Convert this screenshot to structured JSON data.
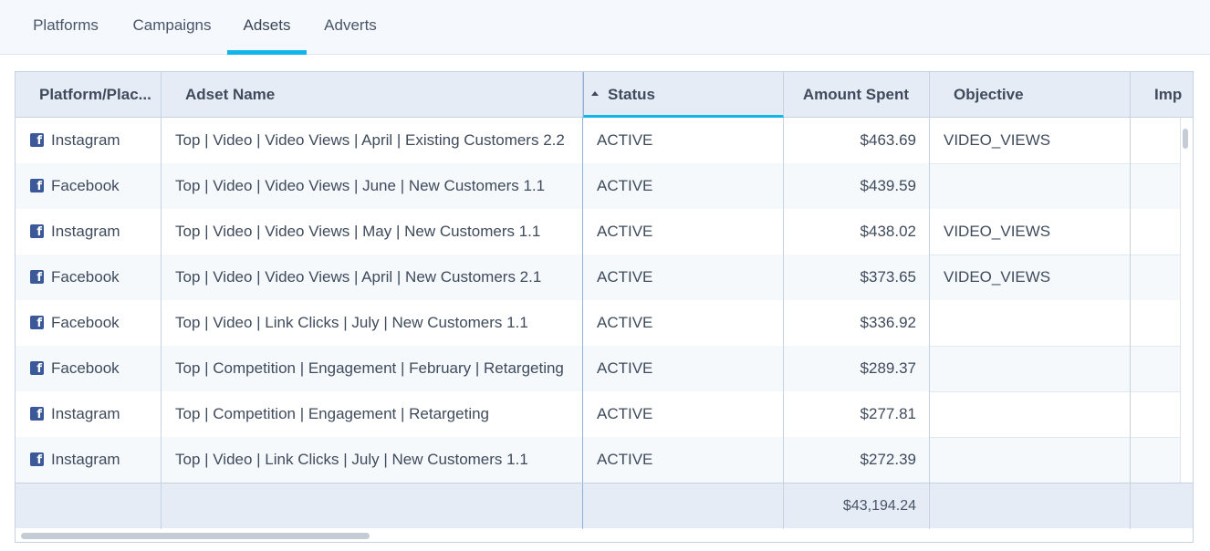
{
  "tabs": [
    {
      "label": "Platforms"
    },
    {
      "label": "Campaigns"
    },
    {
      "label": "Adsets"
    },
    {
      "label": "Adverts"
    }
  ],
  "active_tab": "Adsets",
  "table": {
    "headers": {
      "platform": "Platform/Plac...",
      "adset": "Adset Name",
      "status": "Status",
      "amount": "Amount Spent",
      "objective": "Objective",
      "impressions": "Imp"
    },
    "rows": [
      {
        "platform": "Instagram",
        "adset": "Top | Video | Video Views | April | Existing Customers 2.2",
        "status": "ACTIVE",
        "amount": "$463.69",
        "objective": "VIDEO_VIEWS"
      },
      {
        "platform": "Facebook",
        "adset": "Top | Video | Video Views | June | New Customers 1.1",
        "status": "ACTIVE",
        "amount": "$439.59",
        "objective": ""
      },
      {
        "platform": "Instagram",
        "adset": "Top | Video | Video Views | May | New Customers 1.1",
        "status": "ACTIVE",
        "amount": "$438.02",
        "objective": "VIDEO_VIEWS"
      },
      {
        "platform": "Facebook",
        "adset": "Top | Video | Video Views | April | New Customers 2.1",
        "status": "ACTIVE",
        "amount": "$373.65",
        "objective": "VIDEO_VIEWS"
      },
      {
        "platform": "Facebook",
        "adset": "Top | Video | Link Clicks | July | New Customers 1.1",
        "status": "ACTIVE",
        "amount": "$336.92",
        "objective": ""
      },
      {
        "platform": "Facebook",
        "adset": "Top | Competition | Engagement | February | Retargeting",
        "status": "ACTIVE",
        "amount": "$289.37",
        "objective": ""
      },
      {
        "platform": "Instagram",
        "adset": "Top | Competition | Engagement | Retargeting",
        "status": "ACTIVE",
        "amount": "$277.81",
        "objective": ""
      },
      {
        "platform": "Instagram",
        "adset": "Top | Video | Link Clicks | July | New Customers 1.1",
        "status": "ACTIVE",
        "amount": "$272.39",
        "objective": ""
      }
    ],
    "footer": {
      "amount_total": "$43,194.24"
    }
  },
  "icons": {
    "platform_icon": "facebook-icon",
    "sort_icon": "sort-ascending-icon"
  },
  "colors": {
    "accent": "#12b5ea",
    "facebook": "#3b5998"
  }
}
